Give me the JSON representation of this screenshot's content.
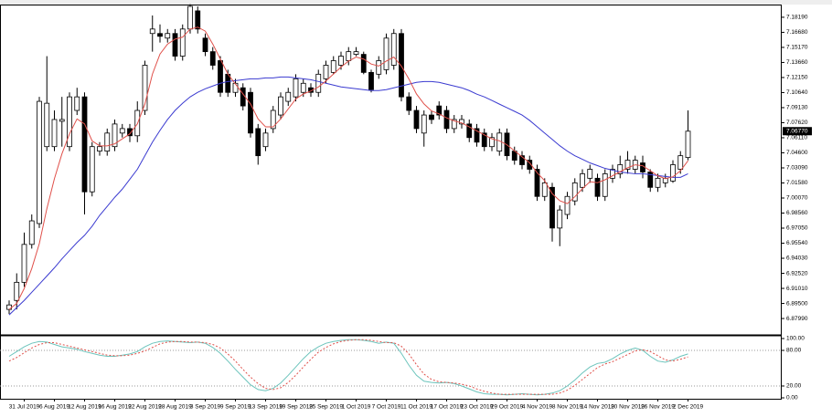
{
  "chart_data": [
    {
      "type": "candlestick",
      "up_color": "#ffffff",
      "down_color": "#000000",
      "edge_color": "#000000",
      "ylim": [
        6.8644,
        7.1928
      ],
      "yticks": [
        {
          "value": 6.8799,
          "label": "6.87990"
        },
        {
          "value": 6.895,
          "label": "6.89500"
        },
        {
          "value": 6.9101,
          "label": "6.91010"
        },
        {
          "value": 6.9252,
          "label": "6.92520"
        },
        {
          "value": 6.9403,
          "label": "6.94030"
        },
        {
          "value": 6.9554,
          "label": "6.95540"
        },
        {
          "value": 6.9705,
          "label": "6.97050"
        },
        {
          "value": 6.9856,
          "label": "6.98560"
        },
        {
          "value": 7.0007,
          "label": "7.00070"
        },
        {
          "value": 7.0158,
          "label": "7.01580"
        },
        {
          "value": 7.0309,
          "label": "7.03090"
        },
        {
          "value": 7.046,
          "label": "7.04600"
        },
        {
          "value": 7.0611,
          "label": "7.06110"
        },
        {
          "value": 7.0762,
          "label": "7.07620"
        },
        {
          "value": 7.0913,
          "label": "7.09130"
        },
        {
          "value": 7.1064,
          "label": "7.10640"
        },
        {
          "value": 7.1215,
          "label": "7.12150"
        },
        {
          "value": 7.1366,
          "label": "7.13660"
        },
        {
          "value": 7.1517,
          "label": "7.15170"
        },
        {
          "value": 7.1668,
          "label": "7.16680"
        },
        {
          "value": 7.1819,
          "label": "7.18190"
        }
      ],
      "last_price": {
        "value": 7.0677,
        "label": "7.06770"
      },
      "open": [
        6.889,
        6.898,
        6.9162,
        6.9542,
        6.9751,
        7.0522,
        7.0522,
        7.0776,
        7.0522,
        7.0885,
        7.1021,
        7.0069,
        7.0477,
        7.0477,
        7.0522,
        7.0658,
        7.0703,
        7.0631,
        7.0885,
        7.1656,
        7.1656,
        7.161,
        7.1656,
        7.1429,
        7.1701,
        7.1883,
        7.161,
        7.1474,
        7.1384,
        7.1248,
        7.1066,
        7.1112,
        7.1066,
        7.0703,
        7.0522,
        7.0703,
        7.0839,
        7.0976,
        7.1021,
        7.1066,
        7.1112,
        7.1066,
        7.1202,
        7.1266,
        7.1338,
        7.1384,
        7.1447,
        7.1447,
        7.1266,
        7.1248,
        7.1293,
        7.1338,
        7.1656,
        7.1021,
        7.0885,
        7.0658,
        7.0839,
        7.093,
        7.0885,
        7.0703,
        7.0749,
        7.0749,
        7.0703,
        7.0658,
        7.0522,
        7.0477,
        7.0658,
        7.0477,
        7.0431,
        7.0386,
        7.0295,
        7.0023,
        7.0114,
        6.9706,
        6.9842,
        6.9978,
        7.0114,
        7.0205,
        7.0205,
        7.0023,
        7.0205,
        7.025,
        7.0295,
        7.0295,
        7.0359,
        7.0268,
        7.0114,
        7.0159,
        7.0177,
        7.0295,
        7.0413
      ],
      "high": [
        6.898,
        6.9252,
        6.966,
        6.9842,
        7.1021,
        7.1429,
        7.0885,
        7.1021,
        7.1066,
        7.1112,
        7.1066,
        7.0567,
        7.0567,
        7.0703,
        7.0794,
        7.0749,
        7.0749,
        7.0976,
        7.1384,
        7.1837,
        7.1747,
        7.1701,
        7.1701,
        7.1747,
        7.195,
        7.1928,
        7.1656,
        7.152,
        7.1429,
        7.1293,
        7.1202,
        7.1157,
        7.1112,
        7.0749,
        7.0703,
        7.093,
        7.1066,
        7.1112,
        7.1248,
        7.1202,
        7.1157,
        7.1293,
        7.1384,
        7.1429,
        7.1474,
        7.152,
        7.152,
        7.1474,
        7.1293,
        7.1429,
        7.1656,
        7.1701,
        7.1701,
        7.1066,
        7.093,
        7.0885,
        7.0885,
        7.0976,
        7.093,
        7.0839,
        7.0839,
        7.0794,
        7.0749,
        7.0703,
        7.0658,
        7.0703,
        7.0703,
        7.0522,
        7.0477,
        7.0431,
        7.0341,
        7.0205,
        7.0159,
        6.9933,
        7.0069,
        7.0205,
        7.0295,
        7.0341,
        7.025,
        7.0295,
        7.0341,
        7.0431,
        7.0477,
        7.0431,
        7.0431,
        7.0295,
        7.025,
        7.025,
        7.0386,
        7.0477,
        7.0885
      ],
      "low": [
        6.8844,
        6.889,
        6.9116,
        6.95,
        6.9706,
        7.0477,
        7.0477,
        7.0522,
        7.0477,
        7.0839,
        6.9842,
        7.0023,
        7.0431,
        7.0431,
        7.0477,
        7.0613,
        7.0567,
        7.0567,
        7.0839,
        7.1474,
        7.1565,
        7.1565,
        7.1384,
        7.1384,
        7.1656,
        7.1656,
        7.1429,
        7.1293,
        7.1021,
        7.1021,
        7.1021,
        7.0885,
        7.0613,
        7.0341,
        7.0477,
        7.0658,
        7.0794,
        7.093,
        7.0976,
        7.1021,
        7.1021,
        7.1021,
        7.1157,
        7.1248,
        7.1293,
        7.1338,
        7.1429,
        7.1248,
        7.1066,
        7.1202,
        7.1248,
        7.1293,
        7.0976,
        7.0839,
        7.0658,
        7.0522,
        7.0749,
        7.0794,
        7.0658,
        7.0658,
        7.0703,
        7.0567,
        7.0522,
        7.0477,
        7.0477,
        7.0431,
        7.0386,
        7.0341,
        7.0295,
        7.025,
        6.9978,
        6.9978,
        6.957,
        6.9524,
        6.9796,
        6.9933,
        7.0069,
        7.0159,
        6.9978,
        6.9978,
        7.0159,
        7.0205,
        7.025,
        7.025,
        7.0205,
        7.0069,
        7.0069,
        7.0114,
        7.0159,
        7.025,
        7.0386
      ],
      "close": [
        6.8935,
        6.9162,
        6.9542,
        6.9778,
        7.0976,
        7.0957,
        7.0794,
        7.0794,
        7.1021,
        7.1021,
        7.0069,
        7.0522,
        7.0522,
        7.0658,
        7.0749,
        7.0703,
        7.0631,
        7.0885,
        7.1338,
        7.1701,
        7.1628,
        7.1656,
        7.1429,
        7.1701,
        7.1928,
        7.1701,
        7.1474,
        7.1338,
        7.1066,
        7.1066,
        7.1157,
        7.093,
        7.0658,
        7.0431,
        7.0658,
        7.0885,
        7.1021,
        7.1066,
        7.1202,
        7.1157,
        7.1066,
        7.1248,
        7.1338,
        7.1384,
        7.1429,
        7.1474,
        7.1474,
        7.1266,
        7.1093,
        7.1384,
        7.161,
        7.1656,
        7.1021,
        7.0885,
        7.0703,
        7.0839,
        7.0794,
        7.0839,
        7.0703,
        7.0794,
        7.0794,
        7.0613,
        7.0567,
        7.0522,
        7.0613,
        7.0658,
        7.0431,
        7.0386,
        7.0341,
        7.0295,
        7.0023,
        7.0159,
        6.9706,
        6.9887,
        7.0023,
        7.0159,
        7.025,
        7.0295,
        7.0023,
        7.025,
        7.0295,
        7.0341,
        7.0386,
        7.0386,
        7.0268,
        7.0114,
        7.0205,
        7.0205,
        7.0341,
        7.0431,
        7.0677
      ],
      "series": [
        {
          "color": "#3a3ad0",
          "values": [
            6.8835,
            6.8908,
            6.898,
            6.9062,
            6.9143,
            6.9225,
            6.9307,
            6.9397,
            6.9479,
            6.9561,
            6.9633,
            6.9724,
            6.9833,
            6.9923,
            7.0014,
            7.0096,
            7.0195,
            7.0295,
            7.0431,
            7.0567,
            7.0685,
            7.0794,
            7.0885,
            7.0957,
            7.1021,
            7.1066,
            7.1102,
            7.113,
            7.1157,
            7.1175,
            7.1184,
            7.1193,
            7.1202,
            7.1202,
            7.1211,
            7.1211,
            7.122,
            7.122,
            7.1211,
            7.1202,
            7.1193,
            7.1175,
            7.1157,
            7.1139,
            7.1121,
            7.1112,
            7.1102,
            7.1093,
            7.1084,
            7.1084,
            7.1093,
            7.1112,
            7.113,
            7.1148,
            7.1166,
            7.1175,
            7.1175,
            7.1166,
            7.1148,
            7.113,
            7.1112,
            7.1084,
            7.1048,
            7.1021,
            7.0985,
            7.0948,
            7.0912,
            7.0876,
            7.0839,
            7.0785,
            7.0722,
            7.0658,
            7.0595,
            7.0531,
            7.0477,
            7.0431,
            7.0395,
            7.0359,
            7.0332,
            7.0304,
            7.0286,
            7.0268,
            7.0259,
            7.025,
            7.025,
            7.0241,
            7.0232,
            7.0223,
            7.0214,
            7.0214,
            7.025
          ]
        },
        {
          "color": "#e0504a",
          "values": [
            6.889,
            6.895,
            6.91,
            6.93,
            6.955,
            6.99,
            7.02,
            7.045,
            7.065,
            7.08,
            7.075,
            7.058,
            7.053,
            7.053,
            7.055,
            7.06,
            7.065,
            7.075,
            7.095,
            7.125,
            7.145,
            7.155,
            7.16,
            7.162,
            7.17,
            7.172,
            7.168,
            7.155,
            7.14,
            7.125,
            7.115,
            7.105,
            7.095,
            7.08,
            7.072,
            7.072,
            7.08,
            7.09,
            7.1,
            7.105,
            7.108,
            7.112,
            7.118,
            7.125,
            7.132,
            7.138,
            7.142,
            7.14,
            7.135,
            7.133,
            7.138,
            7.142,
            7.133,
            7.12,
            7.105,
            7.095,
            7.088,
            7.085,
            7.081,
            7.078,
            7.076,
            7.072,
            7.068,
            7.064,
            7.06,
            7.058,
            7.054,
            7.048,
            7.042,
            7.036,
            7.026,
            7.018,
            7.005,
            6.998,
            6.995,
            7.002,
            7.01,
            7.017,
            7.016,
            7.019,
            7.023,
            7.027,
            7.031,
            7.034,
            7.033,
            7.028,
            7.023,
            7.02,
            7.022,
            7.028,
            7.038
          ]
        }
      ]
    },
    {
      "type": "line",
      "ylim": [
        0,
        100
      ],
      "yticks": [
        {
          "value": 100,
          "label": "100.00"
        },
        {
          "value": 80,
          "label": "80.00"
        },
        {
          "value": 20,
          "label": "20.00"
        },
        {
          "value": 0,
          "label": "0.00"
        }
      ],
      "categories": [
        null,
        null,
        "31 Jul 2019",
        null,
        null,
        null,
        "6 Aug 2019",
        null,
        null,
        null,
        "12 Aug 2019",
        null,
        null,
        null,
        "16 Aug 2019",
        null,
        null,
        null,
        "22 Aug 2019",
        null,
        null,
        null,
        "28 Aug 2019",
        null,
        null,
        null,
        "3 Sep 2019",
        null,
        null,
        null,
        "9 Sep 2019",
        null,
        null,
        null,
        "13 Sep 2019",
        null,
        null,
        null,
        "19 Sep 2019",
        null,
        null,
        null,
        "25 Sep 2019",
        null,
        null,
        null,
        "1 Oct 2019",
        null,
        null,
        null,
        "7 Oct 2019",
        null,
        null,
        null,
        "11 Oct 2019",
        null,
        null,
        null,
        "17 Oct 2019",
        null,
        null,
        null,
        "23 Oct 2019",
        null,
        null,
        null,
        "29 Oct 2019",
        null,
        null,
        null,
        "4 Nov 2019",
        null,
        null,
        null,
        "8 Nov 2019",
        null,
        null,
        null,
        "14 Nov 2019",
        null,
        null,
        null,
        "20 Nov 2019",
        null,
        null,
        null,
        "26 Nov 2019",
        null,
        null,
        null,
        "2 Dec 2019"
      ],
      "series": [
        {
          "color": "#6cc4bc",
          "line_style": "solid",
          "values": [
            70,
            78,
            86,
            92,
            95,
            94,
            90,
            86,
            84,
            82,
            78,
            75,
            72,
            70,
            70,
            72,
            74,
            78,
            86,
            92,
            95,
            96,
            95,
            94,
            93,
            94,
            92,
            85,
            75,
            62,
            48,
            35,
            22,
            14,
            12,
            16,
            25,
            38,
            52,
            66,
            78,
            86,
            92,
            95,
            97,
            98,
            98,
            97,
            95,
            92,
            94,
            92,
            75,
            55,
            38,
            28,
            26,
            25,
            26,
            24,
            20,
            15,
            10,
            7,
            6,
            6,
            5,
            6,
            7,
            6,
            5,
            6,
            8,
            12,
            20,
            30,
            42,
            52,
            58,
            60,
            66,
            74,
            80,
            84,
            80,
            70,
            62,
            60,
            64,
            70,
            74
          ]
        },
        {
          "color": "#e0504a",
          "line_style": "dashed",
          "values": [
            62,
            68,
            76,
            84,
            90,
            93,
            93,
            90,
            87,
            84,
            81,
            78,
            75,
            72,
            71,
            71,
            72,
            75,
            79,
            85,
            91,
            94,
            95,
            95,
            94,
            94,
            93,
            90,
            84,
            74,
            62,
            48,
            35,
            24,
            16,
            14,
            17,
            26,
            38,
            52,
            65,
            77,
            85,
            91,
            95,
            97,
            98,
            98,
            97,
            95,
            93,
            93,
            87,
            74,
            56,
            40,
            31,
            27,
            26,
            25,
            23,
            20,
            15,
            11,
            8,
            6,
            6,
            6,
            6,
            6,
            6,
            6,
            6,
            8,
            13,
            21,
            31,
            41,
            51,
            57,
            61,
            67,
            73,
            79,
            81,
            78,
            71,
            64,
            62,
            65,
            69
          ]
        }
      ]
    }
  ]
}
